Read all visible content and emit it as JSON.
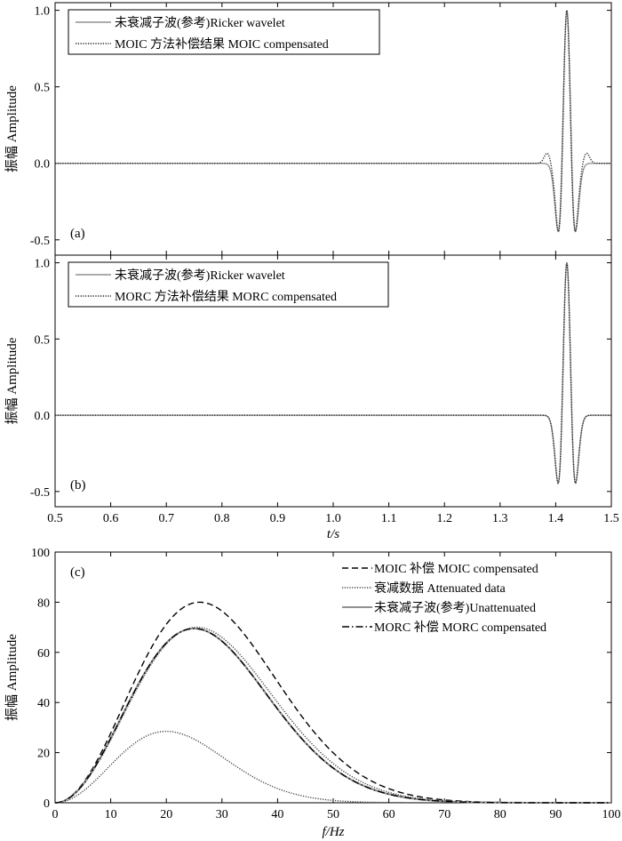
{
  "chart_data": [
    {
      "type": "line",
      "panel_label": "(a)",
      "ylabel": "振幅 Amplitude",
      "xlim": [
        0.5,
        1.5
      ],
      "ylim": [
        -0.6,
        1.05
      ],
      "yticks": [
        "-0.5",
        "0.0",
        "0.5",
        "1.0"
      ],
      "legend_position": "top-left",
      "series": [
        {
          "name": "未衰减子波(参考)Ricker wavelet",
          "style": "solid",
          "color": "#909090",
          "wavelet": {
            "center": 1.42,
            "peak_freq": 25,
            "amplitude": 1.0
          }
        },
        {
          "name": "MOIC 方法补偿结果 MOIC compensated",
          "style": "dotted",
          "color": "#202020",
          "wavelet": {
            "center": 1.42,
            "peak_freq": 26,
            "amplitude": 1.0,
            "sidelobe": 0.07
          }
        }
      ]
    },
    {
      "type": "line",
      "panel_label": "(b)",
      "ylabel": "振幅 Amplitude",
      "xlabel": "t/s",
      "xlim": [
        0.5,
        1.5
      ],
      "ylim": [
        -0.6,
        1.05
      ],
      "xticks": [
        "0.5",
        "0.6",
        "0.7",
        "0.8",
        "0.9",
        "1.0",
        "1.1",
        "1.2",
        "1.3",
        "1.4",
        "1.5"
      ],
      "yticks": [
        "-0.5",
        "0.0",
        "0.5",
        "1.0"
      ],
      "legend_position": "top-left",
      "series": [
        {
          "name": "未衰减子波(参考)Ricker wavelet",
          "style": "solid",
          "color": "#909090",
          "wavelet": {
            "center": 1.42,
            "peak_freq": 25,
            "amplitude": 1.0
          }
        },
        {
          "name": "MORC 方法补偿结果 MORC compensated",
          "style": "dotted",
          "color": "#202020",
          "wavelet": {
            "center": 1.42,
            "peak_freq": 25,
            "amplitude": 1.0
          }
        }
      ]
    },
    {
      "type": "line",
      "panel_label": "(c)",
      "ylabel": "振幅 Amplitude",
      "xlabel": "f/Hz",
      "xlim": [
        0,
        100
      ],
      "ylim": [
        0,
        100
      ],
      "xticks": [
        "0",
        "10",
        "20",
        "30",
        "40",
        "50",
        "60",
        "70",
        "80",
        "90",
        "100"
      ],
      "yticks": [
        "0",
        "20",
        "40",
        "60",
        "80",
        "100"
      ],
      "legend_position": "top-right",
      "series": [
        {
          "name": "MOIC 补偿 MOIC compensated",
          "style": "dashed",
          "color": "#000000",
          "spectrum": {
            "peak": 80,
            "fpeak": 26
          }
        },
        {
          "name": "衰减数据 Attenuated data",
          "style": "dotted",
          "color": "#444444",
          "spectrum": {
            "peak": 28.5,
            "fpeak": 20
          },
          "extra_curve": {
            "peak": 70,
            "fpeak": 25.5
          }
        },
        {
          "name": "未衰减子波(参考)Unattenuated",
          "style": "solid",
          "color": "#909090",
          "spectrum": {
            "peak": 69.5,
            "fpeak": 25
          }
        },
        {
          "name": "MORC 补偿 MORC compensated",
          "style": "dashdot",
          "color": "#000000",
          "spectrum": {
            "peak": 69.5,
            "fpeak": 25
          }
        }
      ]
    }
  ]
}
